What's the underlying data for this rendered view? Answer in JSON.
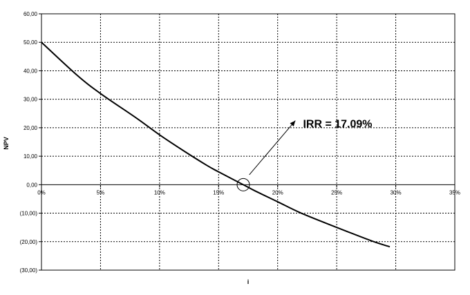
{
  "chart_data": {
    "type": "line",
    "title": "",
    "xlabel": "i",
    "ylabel": "NPV",
    "xlim": [
      0,
      0.35
    ],
    "ylim": [
      -30,
      60
    ],
    "x_ticks": [
      {
        "value": 0,
        "label": "0%"
      },
      {
        "value": 0.05,
        "label": "5%"
      },
      {
        "value": 0.1,
        "label": "10%"
      },
      {
        "value": 0.15,
        "label": "15%"
      },
      {
        "value": 0.2,
        "label": "20%"
      },
      {
        "value": 0.25,
        "label": "25%"
      },
      {
        "value": 0.3,
        "label": "30%"
      },
      {
        "value": 0.35,
        "label": "35%"
      }
    ],
    "y_ticks": [
      {
        "value": 60,
        "label": "60,00"
      },
      {
        "value": 50,
        "label": "50,00"
      },
      {
        "value": 40,
        "label": "40,00"
      },
      {
        "value": 30,
        "label": "30,00"
      },
      {
        "value": 20,
        "label": "20,00"
      },
      {
        "value": 10,
        "label": "10,00"
      },
      {
        "value": 0,
        "label": "0,00"
      },
      {
        "value": -10,
        "label": "(10,00)"
      },
      {
        "value": -20,
        "label": "(20,00)"
      },
      {
        "value": -30,
        "label": "(30,00)"
      }
    ],
    "grid": true,
    "x_axis_crosses_at": 0,
    "series": [
      {
        "x": [
          0,
          0.03,
          0.05,
          0.08,
          0.1,
          0.12,
          0.14,
          0.15,
          0.1709,
          0.18,
          0.2,
          0.22,
          0.25,
          0.28,
          0.295
        ],
        "y": [
          50,
          38.5,
          32,
          23.5,
          17.5,
          12,
          6.8,
          4.5,
          0,
          -2,
          -6,
          -10,
          -15,
          -19.8,
          -21.8
        ],
        "color": "#000000"
      }
    ],
    "annotations": [
      {
        "text": "IRR = 17.09%",
        "x": 0.2215,
        "y": 21.5,
        "arrow_from": [
          0.176,
          3.5
        ],
        "arrow_to": [
          0.215,
          22.5
        ]
      }
    ],
    "marker": {
      "x": 0.1709,
      "y": 0,
      "shape": "circle"
    }
  }
}
